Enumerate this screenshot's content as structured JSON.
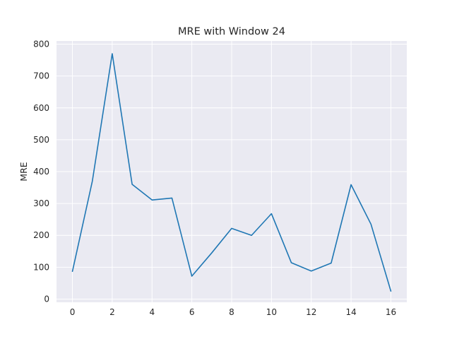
{
  "chart_data": {
    "type": "line",
    "title": "MRE with Window 24",
    "xlabel": "",
    "ylabel": "MRE",
    "xlim": [
      -0.8,
      16.8
    ],
    "ylim": [
      -10,
      810
    ],
    "xticks": [
      0,
      2,
      4,
      6,
      8,
      10,
      12,
      14,
      16
    ],
    "yticks": [
      0,
      100,
      200,
      300,
      400,
      500,
      600,
      700,
      800
    ],
    "grid": true,
    "legend": "none",
    "background_color": "#eaeaf2",
    "grid_color": "#ffffff",
    "series": [
      {
        "color": "#1f77b4",
        "x": [
          0,
          1,
          2,
          3,
          4,
          5,
          6,
          7,
          8,
          9,
          10,
          11,
          12,
          13,
          14,
          15,
          16
        ],
        "y": [
          87,
          370,
          770,
          360,
          311,
          317,
          72,
          145,
          222,
          200,
          268,
          114,
          88,
          113,
          359,
          235,
          25
        ]
      }
    ]
  }
}
